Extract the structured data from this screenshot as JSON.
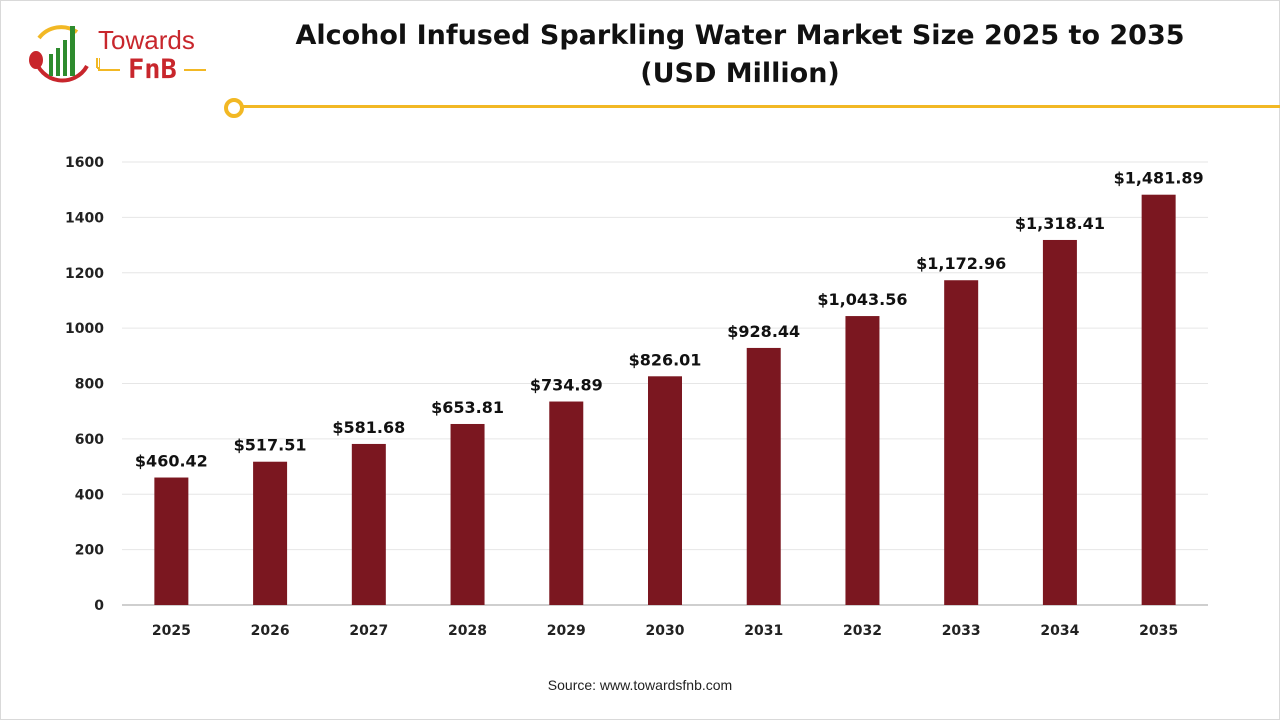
{
  "logo": {
    "line1": "Towards",
    "line2": "FnB",
    "colors": {
      "red": "#c8262c",
      "green": "#2e8b2e",
      "yellow": "#f2b824"
    }
  },
  "header": {
    "title_line1": "Alcohol Infused Sparkling Water Market Size 2025 to 2035",
    "title_line2": "(USD Million)",
    "accent_color": "#f2b824"
  },
  "source": "Source: www.towardsfnb.com",
  "chart_data": {
    "type": "bar",
    "title": "Alcohol Infused Sparkling Water Market Size 2025 to 2035 (USD Million)",
    "categories": [
      "2025",
      "2026",
      "2027",
      "2028",
      "2029",
      "2030",
      "2031",
      "2032",
      "2033",
      "2034",
      "2035"
    ],
    "values": [
      460.42,
      517.51,
      581.68,
      653.81,
      734.89,
      826.01,
      928.44,
      1043.56,
      1172.96,
      1318.41,
      1481.89
    ],
    "data_labels": [
      "$460.42",
      "$517.51",
      "$581.68",
      "$653.81",
      "$734.89",
      "$826.01",
      "$928.44",
      "$1,043.56",
      "$1,172.96",
      "$1,318.41",
      "$1,481.89"
    ],
    "ylim": [
      0,
      1600
    ],
    "yticks": [
      "0",
      "200",
      "400",
      "600",
      "800",
      "1000",
      "1200",
      "1400",
      "1600"
    ],
    "grid": true,
    "bar_color": "#7b1720"
  }
}
